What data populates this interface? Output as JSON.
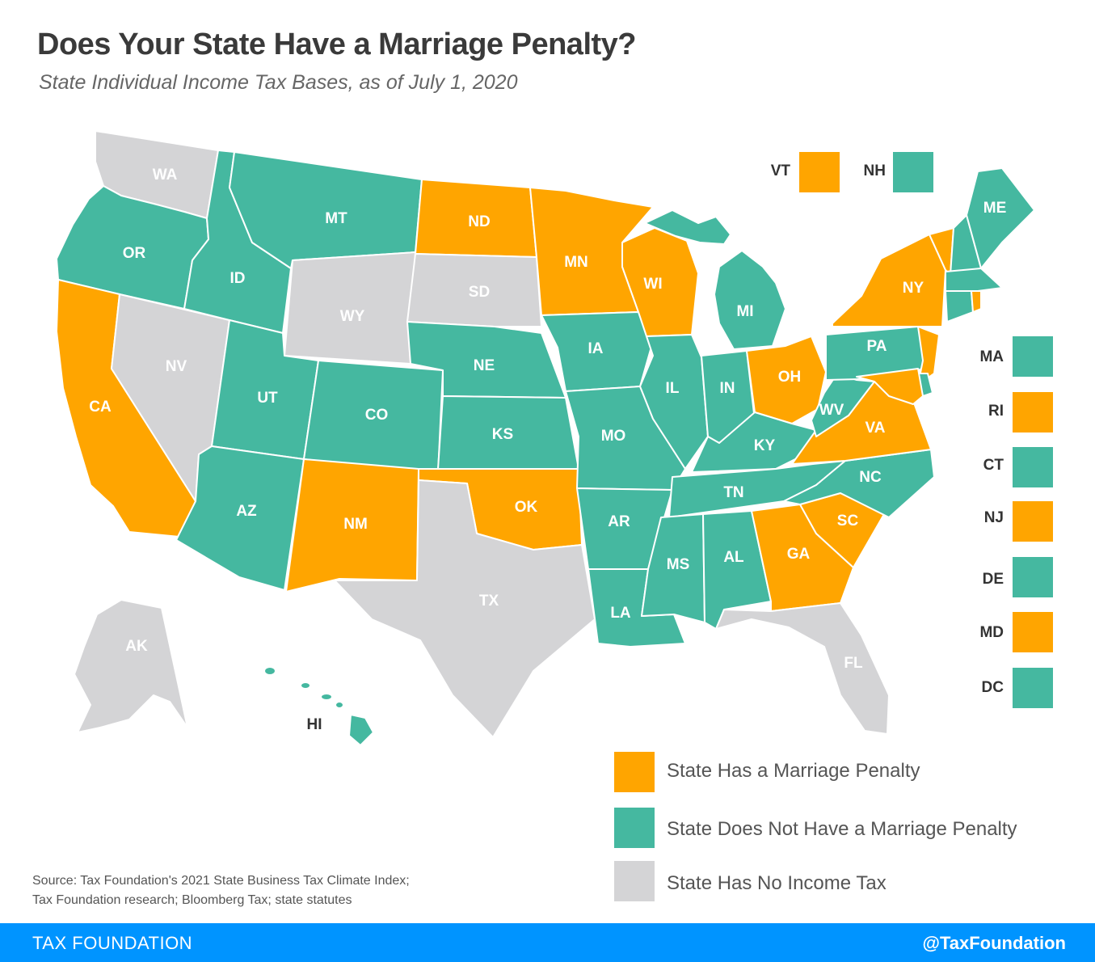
{
  "title": "Does Your State Have a Marriage Penalty?",
  "subtitle": "State Individual Income Tax Bases, as of July 1, 2020",
  "colors": {
    "penalty": "#ffa500",
    "no_penalty": "#45b8a0",
    "no_income_tax": "#d4d4d6",
    "footer_bg": "#0094ff"
  },
  "legend": {
    "penalty": "State Has a Marriage Penalty",
    "no_penalty": "State Does Not Have a Marriage Penalty",
    "no_income_tax": "State Has No Income Tax"
  },
  "source_line1": "Source: Tax Foundation's 2021 State Business Tax Climate Index;",
  "source_line2": "Tax Foundation research; Bloomberg Tax; state statutes",
  "footer": {
    "brand": "TAX FOUNDATION",
    "handle": "@TaxFoundation"
  },
  "states": {
    "WA": "none",
    "OR": "no",
    "CA": "pen",
    "NV": "none",
    "ID": "no",
    "MT": "no",
    "WY": "none",
    "UT": "no",
    "AZ": "no",
    "CO": "no",
    "NM": "pen",
    "ND": "pen",
    "SD": "none",
    "NE": "no",
    "KS": "no",
    "OK": "pen",
    "TX": "none",
    "MN": "pen",
    "IA": "no",
    "MO": "no",
    "AR": "no",
    "LA": "no",
    "WI": "pen",
    "IL": "no",
    "MI": "no",
    "IN": "no",
    "OH": "pen",
    "KY": "no",
    "TN": "no",
    "MS": "no",
    "AL": "no",
    "GA": "pen",
    "FL": "none",
    "SC": "pen",
    "NC": "no",
    "VA": "pen",
    "WV": "no",
    "PA": "no",
    "NY": "pen",
    "ME": "no",
    "AK": "none",
    "HI": "no",
    "VT": "pen",
    "NH": "no",
    "MA": "no",
    "RI": "pen",
    "CT": "no",
    "NJ": "pen",
    "DE": "no",
    "MD": "pen",
    "DC": "no"
  }
}
